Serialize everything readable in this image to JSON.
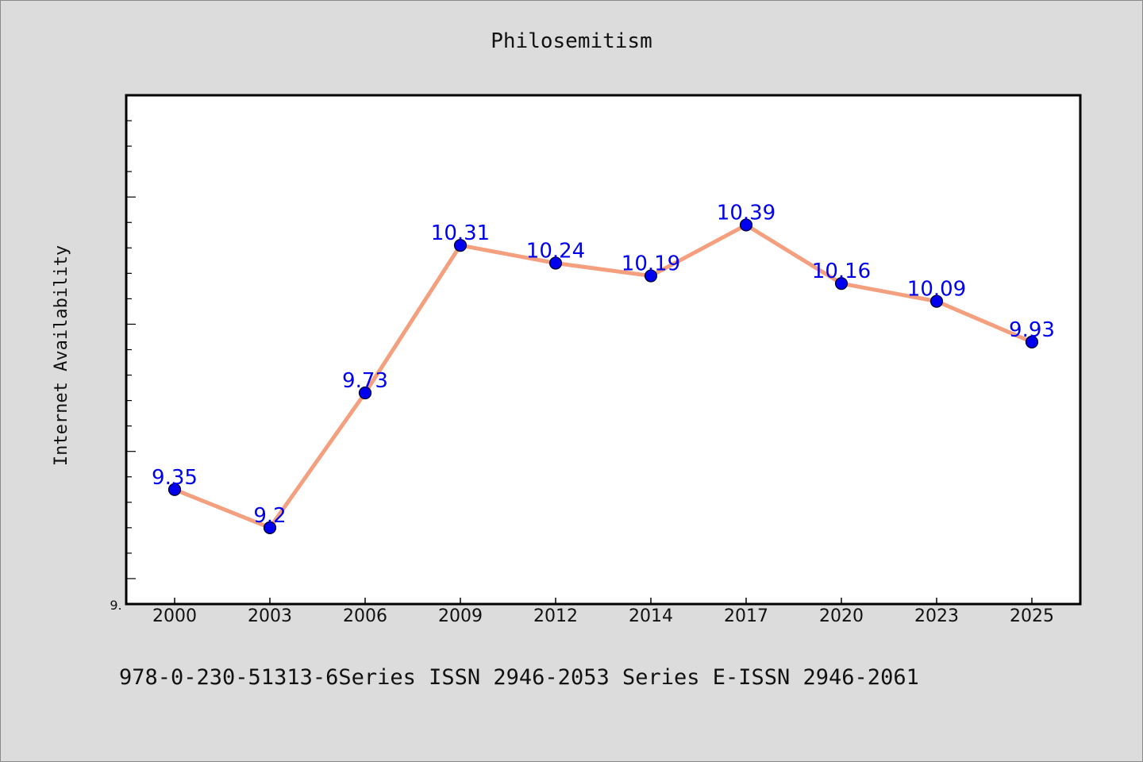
{
  "chart_data": {
    "type": "line",
    "title": "Philosemitism",
    "ylabel": "Internet Availability",
    "xlabel": "",
    "categories": [
      "2000",
      "2003",
      "2006",
      "2009",
      "2012",
      "2014",
      "2017",
      "2020",
      "2023",
      "2025"
    ],
    "series": [
      {
        "values": [
          9.35,
          9.2,
          9.73,
          10.31,
          10.24,
          10.19,
          10.39,
          10.16,
          10.09,
          9.93
        ]
      }
    ],
    "data_labels": [
      "9.35",
      "9.2",
      "9.73",
      "10.31",
      "10.24",
      "10.19",
      "10.39",
      "10.16",
      "10.09",
      "9.93"
    ],
    "ylim": [
      8.9,
      10.9
    ],
    "y_tick_label": "9.",
    "grid": false,
    "legend": "none",
    "line_color": "#f4a07f",
    "marker_color": "#0000ee"
  },
  "footer": {
    "text": "978-0-230-51313-6Series ISSN 2946-2053 Series E-ISSN 2946-2061"
  }
}
